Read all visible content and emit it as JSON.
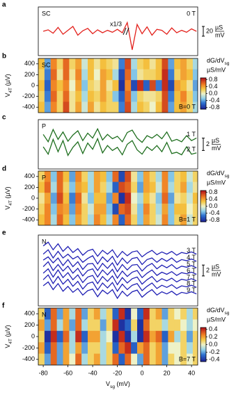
{
  "chart_data": [
    {
      "type": "line",
      "panel_label": "a",
      "inset_label": "SC",
      "annotation": "x1/3",
      "color": "#e3211c",
      "xlim": [
        -84,
        45
      ],
      "ylim": [
        -50,
        50
      ],
      "scale_bar": 20,
      "scale_unit": [
        "µS",
        "mV"
      ],
      "x": [
        -80,
        -76,
        -72,
        -68,
        -64,
        -60,
        -56,
        -52,
        -48,
        -44,
        -40,
        -36,
        -32,
        -28,
        -24,
        -20,
        -16,
        -12,
        -8,
        -4,
        0,
        4,
        8,
        12,
        16,
        20,
        24,
        28,
        32,
        36,
        40,
        44
      ],
      "series": [
        {
          "name": "0 T",
          "color": "#e3211c",
          "values": [
            0,
            3,
            -4,
            8,
            -6,
            2,
            10,
            -8,
            1,
            6,
            -5,
            3,
            -3,
            2,
            -2,
            4,
            -3,
            18,
            -38,
            14,
            -5,
            9,
            -8,
            4,
            2,
            -6,
            7,
            -3,
            2,
            -2,
            5,
            0
          ]
        }
      ]
    },
    {
      "type": "heatmap",
      "panel_label": "b",
      "inset_label": "SC",
      "inset_note": "B=0 T",
      "color": "#e3211c",
      "xlim": [
        -84,
        45
      ],
      "ylim": [
        -500,
        500
      ],
      "yticks": [
        400,
        200,
        0,
        -200,
        -400
      ],
      "ylabel": [
        "V",
        "4T",
        " (µV)"
      ],
      "colorbar_label": [
        "dG/dV",
        "sg"
      ],
      "colorbar_unit": "µS/mV",
      "clim": [
        -0.9,
        0.9
      ],
      "cticks": [
        0.8,
        0.4,
        {
          "value": 0,
          "label": "0.0"
        },
        -0.4,
        -0.8
      ],
      "x": [
        -81.5,
        -76.5,
        -71.5,
        -66.5,
        -61.5,
        -56.5,
        -51.5,
        -46.5,
        -41.5,
        -36.5,
        -31.5,
        -26.5,
        -21.5,
        -16.5,
        -11.5,
        -6.5,
        -1.5,
        3.5,
        8.5,
        13.5,
        18.5,
        23.5,
        28.5,
        33.5,
        38.5,
        43.5
      ],
      "y": [
        400,
        200,
        0,
        -200,
        -400
      ],
      "z": [
        [
          0.3,
          -0.4,
          0.5,
          0.2,
          0.6,
          0.2,
          0.4,
          -0.1,
          0.3,
          0.1,
          0.3,
          0.2,
          0.1,
          -0.5,
          0.7,
          -0.2,
          0.2,
          0.3,
          0.1,
          0.3,
          0.7,
          -0.4,
          0.3,
          0.4,
          0.2,
          -0.2
        ],
        [
          0.2,
          -0.5,
          0.6,
          0.1,
          0.6,
          0.1,
          0.5,
          -0.2,
          0.3,
          0.0,
          0.4,
          0.3,
          -0.2,
          -0.7,
          0.6,
          -0.3,
          0.1,
          0.2,
          0.2,
          0.3,
          0.8,
          -0.5,
          0.2,
          0.4,
          0.3,
          -0.3
        ],
        [
          0.3,
          -0.6,
          0.5,
          0.3,
          0.5,
          0.0,
          0.4,
          -0.3,
          0.2,
          0.1,
          0.4,
          0.1,
          0.3,
          -0.8,
          0.5,
          -0.7,
          0.8,
          -0.6,
          0.7,
          -0.5,
          0.8,
          -0.7,
          0.4,
          0.3,
          0.1,
          -0.4
        ],
        [
          0.2,
          -0.5,
          0.6,
          0.2,
          0.6,
          0.1,
          0.3,
          -0.2,
          0.3,
          0.2,
          0.4,
          0.2,
          -0.3,
          -0.6,
          0.6,
          -0.3,
          0.2,
          0.1,
          0.1,
          0.2,
          0.7,
          -0.5,
          0.3,
          0.5,
          0.2,
          -0.3
        ],
        [
          0.3,
          -0.4,
          0.5,
          0.2,
          0.7,
          0.1,
          0.4,
          -0.1,
          0.4,
          0.1,
          0.3,
          0.2,
          0.2,
          -0.5,
          0.7,
          -0.2,
          0.3,
          0.2,
          0.0,
          0.3,
          0.7,
          -0.4,
          0.3,
          0.4,
          0.2,
          -0.2
        ]
      ]
    },
    {
      "type": "line",
      "panel_label": "c",
      "inset_label": "P",
      "color": "#1e6e1e",
      "xlim": [
        -84,
        45
      ],
      "ylim": [
        -4,
        4
      ],
      "scale_bar": 2,
      "scale_unit": [
        "µS",
        "mV"
      ],
      "x": [
        -80,
        -76,
        -72,
        -68,
        -64,
        -60,
        -56,
        -52,
        -48,
        -44,
        -40,
        -36,
        -32,
        -28,
        -24,
        -20,
        -16,
        -12,
        -8,
        -4,
        0,
        4,
        8,
        12,
        16,
        20,
        24,
        28,
        32,
        36,
        40,
        44
      ],
      "series": [
        {
          "name": "1 T",
          "color": "#1e6e1e",
          "values": [
            1.6,
            0.4,
            2.4,
            0.8,
            2.0,
            0.5,
            1.5,
            2.2,
            0.6,
            1.8,
            1.0,
            2.5,
            0.7,
            1.6,
            0.9,
            1.3,
            0.4,
            1.9,
            2.3,
            1.0,
            0.3,
            1.4,
            1.0,
            1.6,
            0.9,
            2.0,
            0.5,
            0.8,
            0.4,
            1.4,
            0.6,
            1.0
          ]
        },
        {
          "name": "2 T",
          "color": "#1e6e1e",
          "values": [
            -0.4,
            -1.6,
            0.8,
            -1.2,
            0.6,
            -1.8,
            -0.5,
            0.4,
            -1.5,
            0.2,
            -0.8,
            0.9,
            -1.4,
            -0.2,
            -1.0,
            -0.5,
            -1.7,
            0.0,
            0.6,
            -0.9,
            -1.6,
            -0.4,
            -1.0,
            -0.2,
            -1.2,
            0.3,
            -1.5,
            -1.3,
            -1.7,
            -0.4,
            -1.6,
            -1.4
          ]
        }
      ]
    },
    {
      "type": "heatmap",
      "panel_label": "d",
      "inset_label": "P",
      "inset_note": "B=1 T",
      "color": "#1e6e1e",
      "xlim": [
        -84,
        45
      ],
      "ylim": [
        -500,
        500
      ],
      "yticks": [
        400,
        200,
        0,
        -200,
        -400
      ],
      "ylabel": [
        "V",
        "4T",
        " (µV)"
      ],
      "colorbar_label": [
        "dG/dV",
        "sg"
      ],
      "colorbar_unit": "µS/mV",
      "clim": [
        -0.9,
        0.9
      ],
      "cticks": [
        0.8,
        0.4,
        {
          "value": 0,
          "label": "0.0"
        },
        -0.4,
        -0.8
      ],
      "x": [
        -81.5,
        -76.5,
        -71.5,
        -66.5,
        -61.5,
        -56.5,
        -51.5,
        -46.5,
        -41.5,
        -36.5,
        -31.5,
        -26.5,
        -21.5,
        -16.5,
        -11.5,
        -6.5,
        -1.5,
        3.5,
        8.5,
        13.5,
        18.5,
        23.5,
        28.5,
        33.5,
        38.5,
        43.5
      ],
      "y": [
        400,
        200,
        0,
        -200,
        -400
      ],
      "z": [
        [
          0.2,
          0.5,
          -0.3,
          0.6,
          0.3,
          -0.4,
          0.5,
          0.2,
          -0.2,
          0.4,
          0.3,
          -0.3,
          0.6,
          -0.7,
          0.7,
          0.1,
          -0.3,
          0.4,
          0.2,
          -0.2,
          0.5,
          -0.3,
          0.2,
          0.3,
          -0.1,
          0.2
        ],
        [
          0.3,
          0.6,
          -0.2,
          0.6,
          0.2,
          -0.3,
          0.4,
          0.3,
          -0.2,
          0.4,
          0.2,
          -0.2,
          -0.6,
          0.7,
          0.6,
          0.2,
          -0.4,
          0.4,
          0.3,
          -0.1,
          0.5,
          -0.2,
          0.2,
          0.4,
          -0.2,
          0.1
        ],
        [
          0.1,
          0.4,
          -0.4,
          0.7,
          0.3,
          -0.5,
          0.6,
          0.1,
          -0.3,
          0.3,
          0.3,
          -0.4,
          0.5,
          -0.8,
          0.8,
          0.0,
          -0.2,
          0.3,
          0.1,
          -0.3,
          0.6,
          -0.4,
          0.1,
          0.2,
          -0.1,
          0.3
        ],
        [
          0.2,
          0.5,
          -0.3,
          0.5,
          0.4,
          -0.4,
          0.5,
          0.2,
          -0.1,
          0.4,
          0.4,
          -0.3,
          -0.7,
          0.6,
          0.7,
          0.1,
          -0.3,
          0.5,
          0.2,
          -0.2,
          0.4,
          -0.3,
          0.3,
          0.3,
          0.0,
          0.2
        ],
        [
          0.3,
          0.5,
          -0.2,
          0.6,
          0.3,
          -0.3,
          0.4,
          0.2,
          -0.2,
          0.5,
          0.3,
          -0.2,
          0.5,
          -0.6,
          0.6,
          0.2,
          -0.3,
          0.4,
          0.2,
          -0.1,
          0.5,
          -0.3,
          0.2,
          0.4,
          -0.1,
          0.2
        ]
      ]
    },
    {
      "type": "line",
      "panel_label": "e",
      "inset_label": "N",
      "color": "#1f1fb4",
      "xlim": [
        -84,
        45
      ],
      "ylim": [
        -7,
        6
      ],
      "scale_bar": 2,
      "scale_unit": [
        "µS",
        "mV"
      ],
      "x": [
        -80,
        -76,
        -72,
        -68,
        -64,
        -60,
        -56,
        -52,
        -48,
        -44,
        -40,
        -36,
        -32,
        -28,
        -24,
        -20,
        -16,
        -12,
        -8,
        -4,
        0,
        4,
        8,
        12,
        16,
        20,
        24,
        28,
        32,
        36,
        40,
        44
      ],
      "series": [
        {
          "name": "3 T",
          "color": "#1f1fb4",
          "values": [
            4.0,
            4.7,
            3.3,
            4.4,
            3.0,
            3.9,
            2.8,
            3.5,
            2.3,
            3.1,
            3.4,
            2.1,
            3.2,
            2.5,
            3.3,
            1.9,
            3.0,
            2.2,
            2.9,
            3.1,
            2.0,
            2.7,
            3.2,
            2.4,
            2.9,
            2.5,
            3.0,
            2.3,
            2.8,
            2.6,
            2.9,
            2.5
          ]
        },
        {
          "name": "4 T",
          "color": "#1f1fb4",
          "values": [
            2.5,
            3.3,
            1.8,
            3.0,
            1.8,
            2.5,
            1.6,
            2.1,
            1.0,
            1.7,
            2.2,
            0.7,
            2.0,
            1.1,
            2.1,
            0.5,
            1.8,
            0.8,
            1.7,
            1.9,
            0.6,
            1.5,
            1.8,
            1.0,
            1.7,
            1.2,
            1.8,
            1.0,
            1.5,
            1.3,
            1.6,
            1.2
          ]
        },
        {
          "name": "5 T",
          "color": "#1f1fb4",
          "values": [
            1.4,
            2.0,
            0.9,
            1.8,
            0.4,
            1.5,
            0.2,
            1.1,
            -0.3,
            0.7,
            0.8,
            -0.5,
            0.8,
            -0.1,
            0.9,
            -0.7,
            0.6,
            -0.4,
            0.5,
            0.6,
            -0.6,
            0.3,
            0.8,
            -0.2,
            0.5,
            0.0,
            0.6,
            -0.2,
            0.3,
            0.1,
            0.4,
            0.0
          ]
        },
        {
          "name": "6 T",
          "color": "#1f1fb4",
          "values": [
            0.2,
            1.1,
            -0.5,
            0.6,
            -0.6,
            0.3,
            -1.0,
            -0.1,
            -1.5,
            -0.5,
            -0.2,
            -1.7,
            -0.4,
            -1.3,
            -0.3,
            -1.9,
            -0.6,
            -1.6,
            -0.8,
            -0.5,
            -1.8,
            -1.0,
            -0.4,
            -1.4,
            -0.8,
            -1.2,
            -0.7,
            -1.4,
            -0.9,
            -1.1,
            -0.8,
            -1.2
          ]
        },
        {
          "name": "7 T",
          "color": "#1f1fb4",
          "values": [
            -1.0,
            -0.2,
            -1.7,
            -0.4,
            -1.8,
            -0.9,
            -2.2,
            -1.3,
            -2.7,
            -1.7,
            -1.4,
            -2.9,
            -1.6,
            -2.5,
            -1.5,
            -3.1,
            -1.8,
            -2.8,
            -2.0,
            -1.7,
            -3.0,
            -2.2,
            -1.6,
            -2.6,
            -2.0,
            -2.4,
            -1.9,
            -2.6,
            -2.1,
            -2.3,
            -2.0,
            -2.4
          ]
        },
        {
          "name": "8 T",
          "color": "#1f1fb4",
          "values": [
            -2.2,
            -1.3,
            -2.9,
            -1.6,
            -3.0,
            -2.1,
            -3.4,
            -2.5,
            -3.9,
            -2.9,
            -2.6,
            -4.1,
            -2.8,
            -3.7,
            -2.7,
            -4.3,
            -3.0,
            -4.0,
            -3.2,
            -2.9,
            -4.2,
            -3.4,
            -2.8,
            -3.8,
            -3.2,
            -3.6,
            -3.1,
            -3.8,
            -3.3,
            -3.5,
            -3.2,
            -3.6
          ]
        },
        {
          "name": "9 T",
          "color": "#1f1fb4",
          "values": [
            -3.3,
            -2.6,
            -4.0,
            -2.9,
            -4.3,
            -3.4,
            -4.5,
            -3.8,
            -5.0,
            -4.2,
            -3.9,
            -5.3,
            -4.1,
            -4.8,
            -4.0,
            -5.6,
            -4.3,
            -5.2,
            -4.4,
            -4.1,
            -5.4,
            -4.6,
            -4.0,
            -5.0,
            -4.4,
            -4.8,
            -4.3,
            -5.0,
            -4.5,
            -4.7,
            -4.4,
            -4.8
          ]
        }
      ]
    },
    {
      "type": "heatmap",
      "panel_label": "f",
      "inset_label": "N",
      "inset_note": "B=7 T",
      "color": "#1f1fb4",
      "xlim": [
        -84,
        45
      ],
      "ylim": [
        -500,
        500
      ],
      "yticks": [
        400,
        200,
        0,
        -200,
        -400
      ],
      "ylabel": [
        "V",
        "4T",
        " (µV)"
      ],
      "colorbar_label": [
        "dG/dV",
        "sg"
      ],
      "colorbar_unit": "µS/mV",
      "clim": [
        -0.45,
        0.45
      ],
      "cticks": [
        0.4,
        0.2,
        {
          "value": 0,
          "label": "0.0"
        },
        -0.2,
        -0.4
      ],
      "xticks": [
        -80,
        -60,
        -40,
        -20,
        0,
        20,
        40
      ],
      "xlabel": [
        "V",
        "sg",
        " (mV)"
      ],
      "x": [
        -81.5,
        -76.5,
        -71.5,
        -66.5,
        -61.5,
        -56.5,
        -51.5,
        -46.5,
        -41.5,
        -36.5,
        -31.5,
        -26.5,
        -21.5,
        -16.5,
        -11.5,
        -6.5,
        -1.5,
        3.5,
        8.5,
        13.5,
        18.5,
        23.5,
        28.5,
        33.5,
        38.5,
        43.5
      ],
      "y": [
        400,
        200,
        0,
        -200,
        -400
      ],
      "z": [
        [
          0.1,
          -0.3,
          0.3,
          -0.2,
          0.2,
          -0.1,
          0.3,
          -0.2,
          0.1,
          0.2,
          -0.1,
          0.1,
          -0.3,
          0.4,
          -0.4,
          0.0,
          -0.3,
          0.4,
          0.1,
          0.2,
          -0.2,
          0.1,
          0.0,
          0.1,
          -0.1,
          0.1
        ],
        [
          0.2,
          -0.2,
          0.3,
          -0.1,
          0.2,
          -0.2,
          0.3,
          -0.1,
          0.1,
          0.1,
          -0.2,
          0.1,
          0.4,
          -0.4,
          -0.3,
          0.1,
          -0.4,
          0.3,
          0.1,
          0.1,
          -0.1,
          0.1,
          0.1,
          0.0,
          -0.1,
          0.0
        ],
        [
          0.1,
          -0.4,
          0.4,
          -0.3,
          0.3,
          -0.1,
          0.4,
          -0.3,
          0.2,
          0.2,
          -0.1,
          0.0,
          -0.4,
          0.4,
          -0.4,
          -0.1,
          -0.4,
          0.4,
          0.2,
          0.3,
          -0.3,
          0.2,
          -0.1,
          0.1,
          -0.2,
          0.1
        ],
        [
          0.2,
          -0.3,
          0.3,
          -0.2,
          0.2,
          -0.1,
          0.2,
          -0.2,
          0.1,
          0.1,
          -0.1,
          0.1,
          -0.3,
          0.3,
          0.4,
          -0.3,
          0.2,
          0.3,
          0.1,
          0.2,
          -0.2,
          0.0,
          0.0,
          0.1,
          -0.1,
          0.1
        ],
        [
          0.1,
          -0.2,
          0.3,
          -0.2,
          0.2,
          0.0,
          0.3,
          -0.1,
          0.1,
          0.2,
          -0.1,
          0.1,
          0.3,
          -0.3,
          0.3,
          0.0,
          -0.2,
          0.3,
          0.1,
          0.2,
          -0.2,
          0.1,
          0.0,
          0.1,
          0.0,
          0.1
        ]
      ]
    }
  ]
}
